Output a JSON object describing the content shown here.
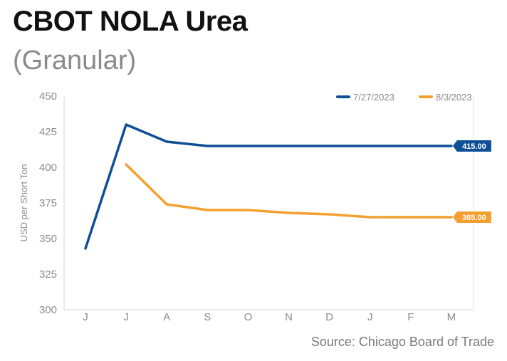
{
  "header": {
    "title": "CBOT NOLA Urea",
    "subtitle": "(Granular)"
  },
  "footer": {
    "source": "Source: Chicago Board of Trade"
  },
  "chart_data": {
    "type": "line",
    "categories": [
      "J",
      "J",
      "A",
      "S",
      "O",
      "N",
      "D",
      "J",
      "F",
      "M"
    ],
    "ylabel": "USD per Short Ton",
    "ylim": [
      300,
      450
    ],
    "yticks": [
      300,
      325,
      350,
      375,
      400,
      425,
      450
    ],
    "grid": false,
    "legend_position": "top-right",
    "series": [
      {
        "name": "7/27/2023",
        "color": "#0e4f96",
        "values": [
          343,
          430,
          418,
          415,
          415,
          415,
          415,
          415,
          415,
          415
        ],
        "end_label": "415.00"
      },
      {
        "name": "8/3/2023",
        "color": "#f3a031",
        "values": [
          null,
          402,
          374,
          370,
          370,
          368,
          367,
          365,
          365,
          365
        ],
        "end_label": "365.00"
      }
    ]
  }
}
